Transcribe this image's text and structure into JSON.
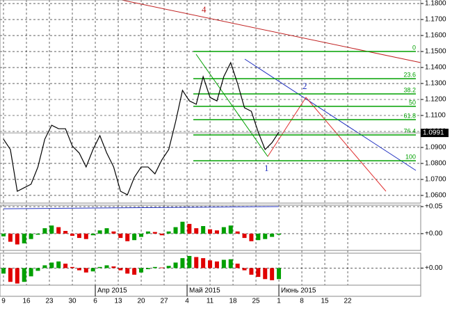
{
  "chart_data": {
    "type": "line",
    "color": "#000000",
    "x": [
      0,
      1.5,
      3,
      4.5,
      6,
      7.5,
      9,
      10.5,
      12,
      13.5,
      15,
      16.5,
      18,
      19.5,
      21,
      22.5,
      24,
      25.5,
      27,
      28.5,
      30,
      31.5,
      33,
      34.5,
      36,
      37.5,
      39,
      40.5,
      42,
      43.5,
      45,
      46.5,
      48,
      49.5,
      51,
      52.5,
      54,
      55.5,
      57,
      58.5,
      60
    ],
    "values": [
      1.0952,
      1.0887,
      1.0626,
      1.0648,
      1.067,
      1.0778,
      1.0952,
      1.1039,
      1.1017,
      1.1017,
      1.0909,
      1.0865,
      1.0778,
      1.0887,
      1.0974,
      1.0865,
      1.0778,
      1.0626,
      1.0604,
      1.0713,
      1.0778,
      1.0778,
      1.0735,
      1.0822,
      1.0887,
      1.1061,
      1.1257,
      1.1191,
      1.117,
      1.1343,
      1.1213,
      1.1191,
      1.1343,
      1.143,
      1.13,
      1.1148,
      1.1126,
      1.0996,
      1.0887,
      1.093,
      1.0996
    ],
    "xlim": [
      -0.76,
      90.9
    ],
    "ylim": [
      1.0552,
      1.1822
    ],
    "yticks": [
      {
        "value": 1.06,
        "label": "1.0600"
      },
      {
        "value": 1.07,
        "label": "1.0700"
      },
      {
        "value": 1.08,
        "label": "1.0800"
      },
      {
        "value": 1.09,
        "label": "1.0900"
      },
      {
        "value": 1.1,
        "label": "1.1000"
      },
      {
        "value": 1.11,
        "label": "1.1100"
      },
      {
        "value": 1.12,
        "label": "1.1200"
      },
      {
        "value": 1.13,
        "label": "1.1300"
      },
      {
        "value": 1.14,
        "label": "1.1400"
      },
      {
        "value": 1.15,
        "label": "1.1500"
      },
      {
        "value": 1.16,
        "label": "1.1600"
      },
      {
        "value": 1.17,
        "label": "1.1700"
      },
      {
        "value": 1.18,
        "label": "1.1800"
      }
    ],
    "xticks": [
      {
        "value": 0,
        "label": "9"
      },
      {
        "value": 5,
        "label": "16"
      },
      {
        "value": 10,
        "label": "23"
      },
      {
        "value": 15,
        "label": "30"
      },
      {
        "value": 20,
        "label": "6"
      },
      {
        "value": 25,
        "label": "13"
      },
      {
        "value": 30,
        "label": "20"
      },
      {
        "value": 35,
        "label": "27"
      },
      {
        "value": 40,
        "label": "4"
      },
      {
        "value": 45,
        "label": "11"
      },
      {
        "value": 50,
        "label": "18"
      },
      {
        "value": 55,
        "label": "25"
      },
      {
        "value": 60,
        "label": "1"
      },
      {
        "value": 65,
        "label": "8"
      },
      {
        "value": 70,
        "label": "15"
      },
      {
        "value": 75,
        "label": "22"
      }
    ],
    "month_ticks": [
      {
        "value": 20,
        "label": "Апр 2015"
      },
      {
        "value": 40,
        "label": "Май 2015"
      },
      {
        "value": 60,
        "label": "Июнь 2015"
      }
    ],
    "grid": true,
    "last_price": {
      "value": 1.0991,
      "label": "1.0991"
    },
    "fib": {
      "color": "#00a000",
      "levels": [
        0,
        23.6,
        38.2,
        50,
        61.8,
        76.4,
        100
      ],
      "prices": [
        1.15,
        1.133,
        1.1235,
        1.1157,
        1.1074,
        1.0978,
        1.0817
      ]
    },
    "annotations": [
      "4",
      "2",
      "1"
    ],
    "panels": [
      {
        "type": "bar",
        "up_color": "#00a000",
        "down_color": "#e00000",
        "values": [
          -0.005,
          -0.015,
          -0.02,
          -0.018,
          -0.01,
          -0.002,
          0.01,
          0.015,
          0.012,
          0.005,
          -0.004,
          -0.008,
          -0.01,
          -0.003,
          0.006,
          0.01,
          0.004,
          -0.008,
          -0.014,
          -0.012,
          -0.006,
          0.004,
          0.003,
          -0.003,
          0.004,
          0.012,
          0.022,
          0.018,
          0.01,
          0.014,
          0.008,
          0.006,
          0.012,
          0.015,
          0.004,
          -0.008,
          -0.014,
          -0.012,
          -0.01,
          -0.006,
          -0.002
        ],
        "line_x": [
          0,
          60
        ],
        "line_values": [
          0.046,
          0.05
        ],
        "line_color": "#2030c0",
        "ylim": [
          -0.031,
          0.0526
        ],
        "yticks": [
          {
            "value": 0,
            "label": "+0.00"
          },
          {
            "value": 0.05,
            "label": "+0.05"
          }
        ]
      },
      {
        "type": "bar",
        "up_color": "#00a000",
        "down_color": "#e00000",
        "values": [
          -0.01,
          -0.025,
          -0.028,
          -0.025,
          -0.015,
          -0.005,
          0.005,
          0.01,
          0.012,
          0.008,
          0.002,
          -0.004,
          -0.008,
          -0.006,
          0.002,
          0.005,
          0.003,
          -0.004,
          -0.01,
          -0.012,
          -0.008,
          -0.002,
          0.002,
          0.001,
          0.004,
          0.01,
          0.018,
          0.022,
          0.02,
          0.018,
          0.014,
          0.012,
          0.015,
          0.016,
          0.008,
          -0.004,
          -0.012,
          -0.016,
          -0.02,
          -0.022,
          -0.02
        ],
        "ylim": [
          -0.031,
          0.027
        ],
        "yticks": [
          {
            "value": 0,
            "label": "+0.00"
          }
        ]
      }
    ]
  }
}
